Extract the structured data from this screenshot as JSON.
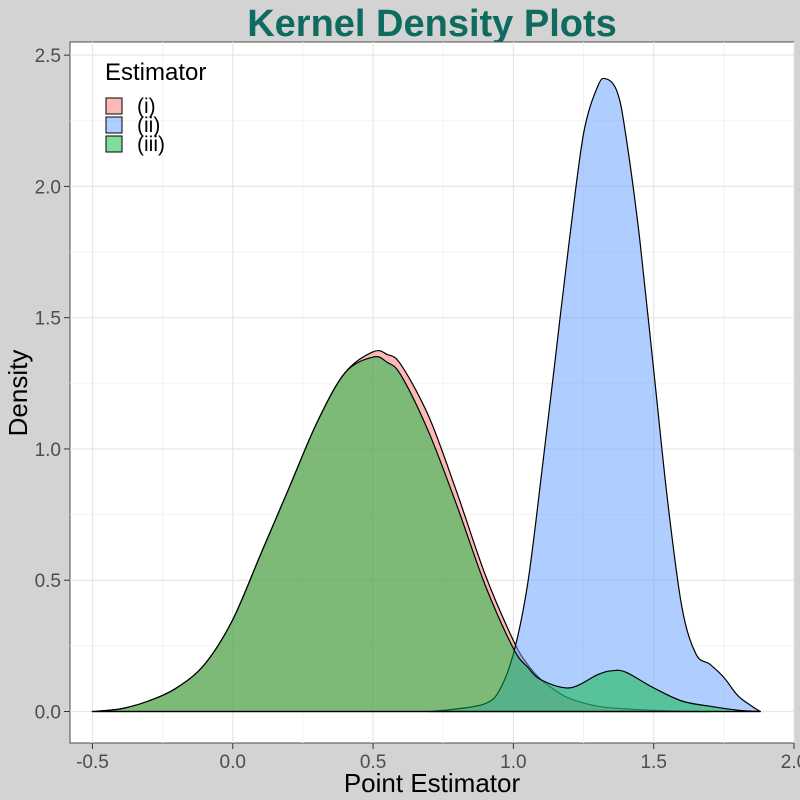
{
  "chart_data": {
    "type": "area",
    "title": "Kernel Density Plots",
    "title_color": "#0f6b5f",
    "xlabel": "Point Estimator",
    "ylabel": "Density",
    "xlim": [
      -0.58,
      2.0
    ],
    "ylim": [
      -0.12,
      2.55
    ],
    "x_ticks": [
      -0.5,
      0.0,
      0.5,
      1.0,
      1.5,
      2.0
    ],
    "x_tick_labels": [
      "-0.5",
      "0.0",
      "0.5",
      "1.0",
      "1.5",
      "2.0"
    ],
    "y_ticks": [
      0.0,
      0.5,
      1.0,
      1.5,
      2.0,
      2.5
    ],
    "y_tick_labels": [
      "0.0",
      "0.5",
      "1.0",
      "1.5",
      "2.0",
      "2.5"
    ],
    "grid": true,
    "legend": {
      "title": "Estimator",
      "position": "top-left"
    },
    "series": [
      {
        "name": "(i)",
        "color": "#f8766d",
        "x": [
          -0.5,
          -0.4,
          -0.3,
          -0.2,
          -0.1,
          0.0,
          0.1,
          0.2,
          0.3,
          0.4,
          0.5,
          0.55,
          0.6,
          0.7,
          0.8,
          0.9,
          1.0,
          1.05,
          1.1,
          1.15,
          1.2,
          1.3,
          1.4,
          1.5,
          1.6,
          1.7
        ],
        "y": [
          0.0,
          0.01,
          0.04,
          0.09,
          0.18,
          0.35,
          0.6,
          0.85,
          1.1,
          1.29,
          1.37,
          1.36,
          1.32,
          1.12,
          0.83,
          0.52,
          0.27,
          0.18,
          0.12,
          0.08,
          0.05,
          0.02,
          0.01,
          0.004,
          0.001,
          0.0
        ]
      },
      {
        "name": "(ii)",
        "color": "#619cff",
        "x": [
          0.7,
          0.8,
          0.9,
          0.95,
          1.0,
          1.05,
          1.1,
          1.15,
          1.2,
          1.25,
          1.3,
          1.33,
          1.37,
          1.4,
          1.45,
          1.5,
          1.55,
          1.6,
          1.65,
          1.7,
          1.75,
          1.8,
          1.85,
          1.88
        ],
        "y": [
          0.0,
          0.01,
          0.03,
          0.08,
          0.22,
          0.48,
          0.9,
          1.35,
          1.8,
          2.2,
          2.38,
          2.41,
          2.36,
          2.2,
          1.8,
          1.3,
          0.8,
          0.4,
          0.22,
          0.18,
          0.13,
          0.06,
          0.02,
          0.0
        ]
      },
      {
        "name": "(iii)",
        "color": "#00ba38",
        "x": [
          -0.5,
          -0.4,
          -0.3,
          -0.2,
          -0.1,
          0.0,
          0.1,
          0.2,
          0.3,
          0.4,
          0.5,
          0.55,
          0.6,
          0.7,
          0.8,
          0.9,
          1.0,
          1.05,
          1.1,
          1.2,
          1.3,
          1.35,
          1.4,
          1.5,
          1.6,
          1.7,
          1.8,
          1.88
        ],
        "y": [
          0.0,
          0.01,
          0.04,
          0.09,
          0.18,
          0.35,
          0.6,
          0.85,
          1.1,
          1.29,
          1.35,
          1.33,
          1.28,
          1.06,
          0.78,
          0.48,
          0.24,
          0.17,
          0.12,
          0.09,
          0.14,
          0.155,
          0.15,
          0.09,
          0.04,
          0.02,
          0.005,
          0.0
        ]
      }
    ]
  }
}
